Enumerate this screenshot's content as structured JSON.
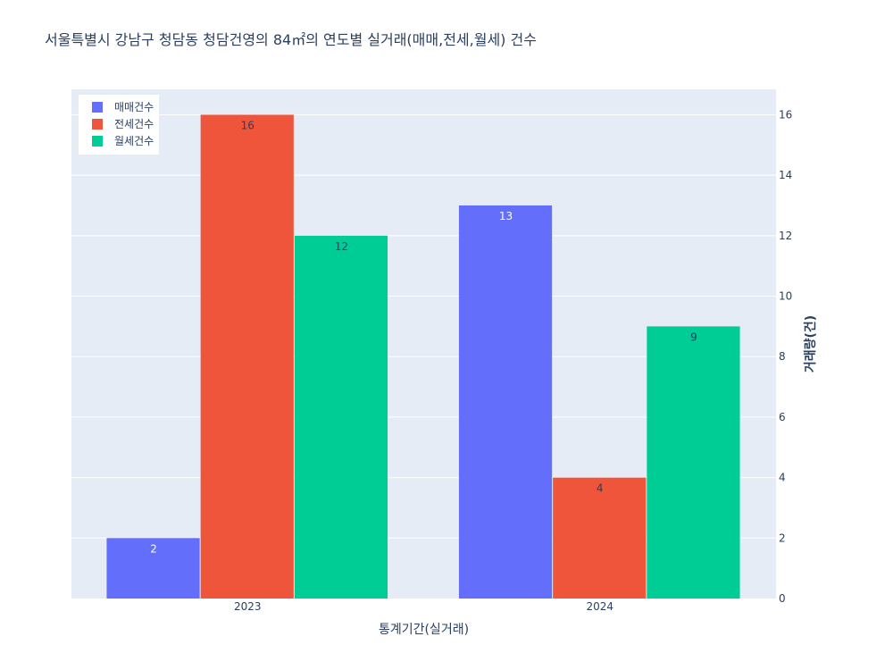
{
  "chart_data": {
    "type": "bar",
    "title": "서울특별시 강남구 청담동 청담건영의 84㎡의 연도별 실거래(매매,전세,월세) 건수",
    "xlabel": "통계기간(실거래)",
    "ylabel": "거래량(건)",
    "categories": [
      "2023",
      "2024"
    ],
    "series": [
      {
        "name": "매매건수",
        "values": [
          2,
          13
        ],
        "color": "#636efa",
        "label_color": "#ffffff"
      },
      {
        "name": "전세건수",
        "values": [
          16,
          4
        ],
        "color": "#ef553b",
        "label_color": "#2a3f5f"
      },
      {
        "name": "월세건수",
        "values": [
          12,
          9
        ],
        "color": "#00cc96",
        "label_color": "#2a3f5f"
      }
    ],
    "ylim": [
      0,
      16.84
    ],
    "yticks": [
      0,
      2,
      4,
      6,
      8,
      10,
      12,
      14,
      16
    ],
    "y_axis_side": "right",
    "grid": true,
    "legend_position": "top-left",
    "plot_background": "#e5ecf6"
  }
}
